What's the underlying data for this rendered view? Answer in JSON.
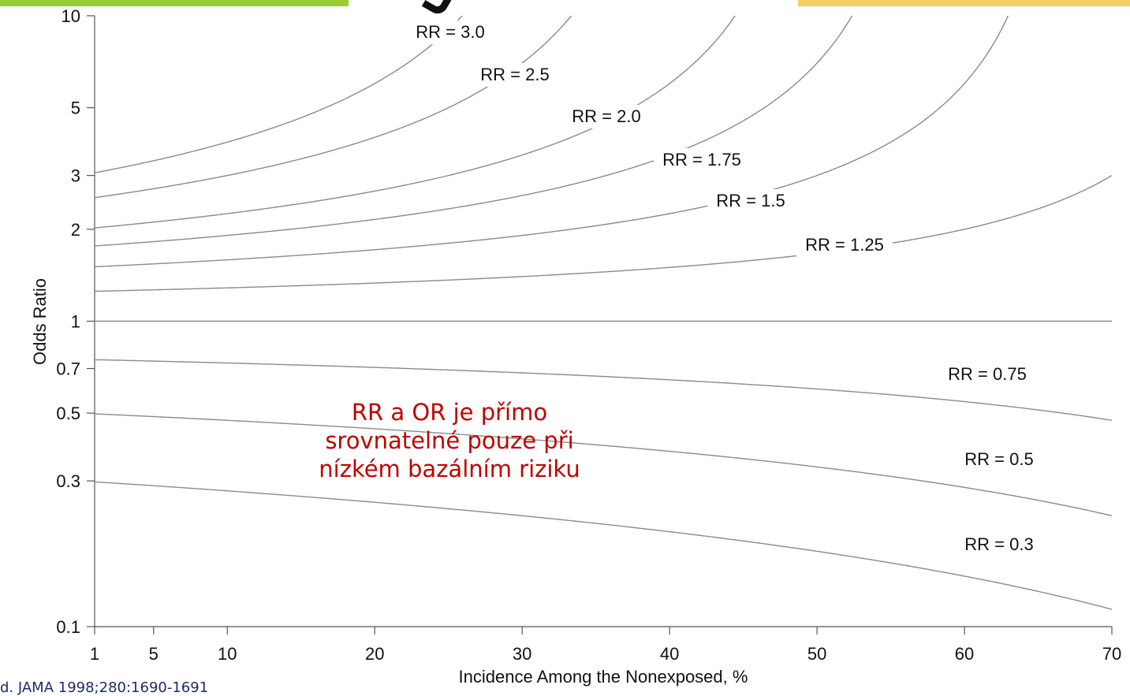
{
  "chart_data": {
    "type": "line",
    "xlabel": "Incidence Among the Nonexposed, %",
    "ylabel": "Odds Ratio",
    "x_scale": "linear",
    "y_scale": "log",
    "xlim": [
      1,
      70
    ],
    "ylim": [
      0.1,
      10
    ],
    "x_ticks": [
      1,
      5,
      10,
      20,
      30,
      40,
      50,
      60,
      70
    ],
    "y_ticks": [
      0.1,
      0.3,
      0.5,
      0.7,
      1,
      2,
      3,
      5,
      10
    ],
    "grid": false,
    "legend": "none",
    "line_color": "#8a8a8a",
    "series": [
      {
        "name": "RR = 3.0",
        "rr": 3.0
      },
      {
        "name": "RR = 2.5",
        "rr": 2.5
      },
      {
        "name": "RR = 2.0",
        "rr": 2.0
      },
      {
        "name": "RR = 1.75",
        "rr": 1.75
      },
      {
        "name": "RR = 1.5",
        "rr": 1.5
      },
      {
        "name": "RR = 1.25",
        "rr": 1.25
      },
      {
        "name": "",
        "rr": 1.0
      },
      {
        "name": "RR = 0.75",
        "rr": 0.75
      },
      {
        "name": "RR = 0.5",
        "rr": 0.5
      },
      {
        "name": "RR = 0.3",
        "rr": 0.3
      }
    ]
  },
  "annotation": {
    "line1": "RR a OR je přímo",
    "line2": "srovnatelné pouze při",
    "line3": "nízkém bazálním riziku",
    "color": "#c00000"
  },
  "citation": "d. JAMA 1998;280:1690-1691",
  "decor": {
    "left_bar_color": "#9acd32",
    "right_bar_color": "#f6cf63"
  }
}
